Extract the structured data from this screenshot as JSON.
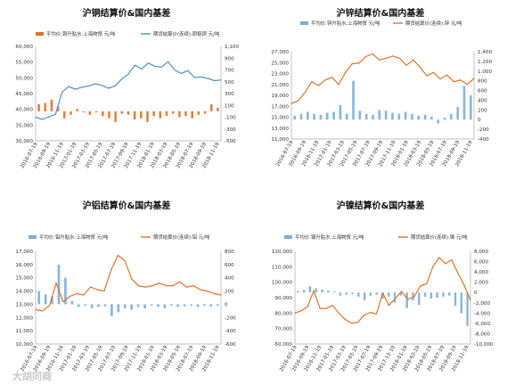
{
  "watermark": "大胡同商",
  "colors": {
    "price": "#e0722a",
    "basis": "#7aaed8",
    "basis_panel0": "#e0722a",
    "price_panel0": "#4f93c8"
  },
  "chart_data": [
    {
      "type": "line",
      "title": "沪铜结算价&国内基差",
      "legend": [
        "平均价:铜升贴水:上海物贸 元/吨",
        "期货结算价(连续):阴极铜 元/吨"
      ],
      "x_ticks": [
        "2016-07-19",
        "2016-09-19",
        "2016-11-19",
        "2017-01-19",
        "2017-03-19",
        "2017-05-19",
        "2017-07-19",
        "2017-09-19",
        "2017-11-19",
        "2018-01-19",
        "2018-03-19",
        "2018-05-19",
        "2018-07-19",
        "2018-09-19",
        "2018-11-19"
      ],
      "y_left_ticks": [
        "30,000",
        "35,000",
        "40,000",
        "45,000",
        "50,000",
        "55,000",
        "60,000"
      ],
      "y_right_ticks": [
        "-500",
        "-300",
        "-100",
        "100",
        "300",
        "500",
        "700",
        "900",
        "1,100"
      ],
      "ylim_left": [
        30000,
        60000
      ],
      "ylim_right": [
        -500,
        1100
      ],
      "series": [
        {
          "name": "期货结算价(连续):阴极铜 元/吨",
          "style": "line",
          "axis": "left",
          "values": [
            37500,
            36800,
            37600,
            38400,
            45500,
            47200,
            46400,
            47000,
            47400,
            48100,
            47600,
            46700,
            47400,
            49600,
            51200,
            54000,
            52800,
            54700,
            53700,
            53400,
            55100,
            52500,
            51400,
            52300,
            50100,
            50300,
            49800,
            49100,
            49300
          ]
        },
        {
          "name": "平均价:铜升贴水:上海物贸 元/吨",
          "style": "bar",
          "axis": "right",
          "values": [
            120,
            140,
            200,
            80,
            -120,
            -60,
            40,
            -20,
            -60,
            -20,
            -80,
            -120,
            -180,
            -40,
            -60,
            -140,
            -120,
            -180,
            -80,
            -120,
            -80,
            -40,
            -100,
            -80,
            -120,
            -60,
            -40,
            120,
            60
          ]
        }
      ]
    },
    {
      "type": "line",
      "title": "沪锌结算价&国内基差",
      "legend": [
        "平均价:锌升贴水:上海物贸 元/吨",
        "期货结算价(连续):锌 元/吨"
      ],
      "x_ticks": [
        "2016-07-19",
        "2016-09-19",
        "2016-11-19",
        "2017-01-19",
        "2017-03-19",
        "2017-05-19",
        "2017-07-19",
        "2017-09-19",
        "2017-11-19",
        "2018-01-19",
        "2018-03-19",
        "2018-05-19",
        "2018-07-19",
        "2018-09-19",
        "2018-11-19"
      ],
      "y_left_ticks": [
        "11,000",
        "13,000",
        "15,000",
        "17,000",
        "19,000",
        "21,000",
        "23,000",
        "25,000",
        "27,000"
      ],
      "y_right_ticks": [
        "-400",
        "-200",
        "0",
        "200",
        "400",
        "600",
        "800",
        "1,000",
        "1,200",
        "1,400"
      ],
      "ylim_left": [
        11000,
        27000
      ],
      "ylim_right": [
        -400,
        1400
      ],
      "series": [
        {
          "name": "期货结算价(连续):锌 元/吨",
          "style": "line",
          "axis": "left",
          "values": [
            17500,
            18000,
            19500,
            21500,
            20800,
            21800,
            22300,
            21000,
            23200,
            24800,
            24900,
            26100,
            26600,
            25500,
            25800,
            26200,
            25800,
            24500,
            25500,
            24200,
            22600,
            23200,
            22000,
            22700,
            21500,
            21800,
            21000,
            22100
          ]
        },
        {
          "name": "平均价:锌升贴水:上海物贸 元/吨",
          "style": "bar",
          "axis": "right",
          "values": [
            80,
            120,
            160,
            120,
            100,
            140,
            160,
            300,
            120,
            800,
            180,
            120,
            100,
            200,
            180,
            140,
            120,
            160,
            120,
            80,
            100,
            60,
            -80,
            40,
            120,
            260,
            700,
            500
          ]
        }
      ]
    },
    {
      "type": "line",
      "title": "沪铝结算价&国内基差",
      "legend": [
        "平均价:铝升贴水:上海物贸 元/吨",
        "期货结算价(连续):铝 元/吨"
      ],
      "x_ticks": [
        "2016-07-19",
        "2016-09-19",
        "2016-11-19",
        "2017-01-19",
        "2017-03-19",
        "2017-05-19",
        "2017-07-19",
        "2017-09-19",
        "2017-11-19",
        "2018-01-19",
        "2018-03-19",
        "2018-05-19",
        "2018-07-19",
        "2018-09-19",
        "2018-11-19"
      ],
      "y_left_ticks": [
        "10,000",
        "11,000",
        "12,000",
        "13,000",
        "14,000",
        "15,000",
        "16,000",
        "17,000"
      ],
      "y_right_ticks": [
        "-600",
        "-400",
        "-200",
        "0",
        "200",
        "400",
        "600",
        "800"
      ],
      "ylim_left": [
        10000,
        17000
      ],
      "ylim_right": [
        -600,
        800
      ],
      "series": [
        {
          "name": "期货结算价(连续):铝 元/吨",
          "style": "line",
          "axis": "left",
          "values": [
            12600,
            12500,
            12900,
            14600,
            13200,
            13600,
            13800,
            13700,
            14300,
            14100,
            14000,
            15600,
            16700,
            16300,
            14900,
            14400,
            14300,
            14400,
            14600,
            14400,
            14400,
            14700,
            14300,
            14400,
            14100,
            14000,
            13800,
            13700
          ]
        },
        {
          "name": "平均价:铝升贴水:上海物贸 元/吨",
          "style": "bar",
          "axis": "right",
          "values": [
            200,
            150,
            120,
            600,
            400,
            50,
            -40,
            -20,
            -60,
            -40,
            -30,
            -180,
            -120,
            -60,
            -80,
            -40,
            -60,
            -20,
            -40,
            -60,
            -20,
            -40,
            -30,
            -20,
            -40,
            -20,
            -30,
            -20
          ]
        }
      ]
    },
    {
      "type": "line",
      "title": "沪镍结算价&国内基差",
      "legend": [
        "平均价:镍升贴水:上海物贸 元/吨",
        "期货结算价(连续):镍 元/吨"
      ],
      "x_ticks": [
        "2016-07-19",
        "2016-09-19",
        "2016-11-19",
        "2017-01-19",
        "2017-03-19",
        "2017-05-19",
        "2017-07-19",
        "2017-09-19",
        "2017-11-19",
        "2018-01-19",
        "2018-03-19",
        "2018-05-19",
        "2018-07-19",
        "2018-09-19",
        "2018-11-19"
      ],
      "y_left_ticks": [
        "60,000",
        "70,000",
        "80,000",
        "90,000",
        "100,000",
        "110,000",
        "120,000"
      ],
      "y_right_ticks": [
        "-10,000",
        "-8,000",
        "-6,000",
        "-4,000",
        "-2,000",
        "0",
        "2,000",
        "4,000",
        "6,000",
        "8,000"
      ],
      "ylim_left": [
        60000,
        120000
      ],
      "ylim_right": [
        -10000,
        8000
      ],
      "series": [
        {
          "name": "期货结算价(连续):镍 元/吨",
          "style": "line",
          "axis": "left",
          "values": [
            80000,
            81500,
            84000,
            94500,
            83000,
            83000,
            85000,
            80000,
            76000,
            73500,
            74000,
            78500,
            80500,
            79500,
            93000,
            85000,
            89500,
            94000,
            89000,
            90500,
            97500,
            99000,
            110000,
            116000,
            112000,
            114500,
            106000,
            98000,
            88500
          ]
        },
        {
          "name": "平均价:镍升贴水:上海物贸 元/吨",
          "style": "bar",
          "axis": "right",
          "values": [
            300,
            500,
            1200,
            800,
            600,
            400,
            200,
            -600,
            -400,
            -300,
            -800,
            -1500,
            -600,
            -400,
            -1200,
            -800,
            -2000,
            -600,
            -3000,
            -1500,
            -2400,
            -800,
            -1200,
            -1000,
            -800,
            -600,
            -2600,
            -4000,
            -6500
          ]
        }
      ]
    }
  ]
}
